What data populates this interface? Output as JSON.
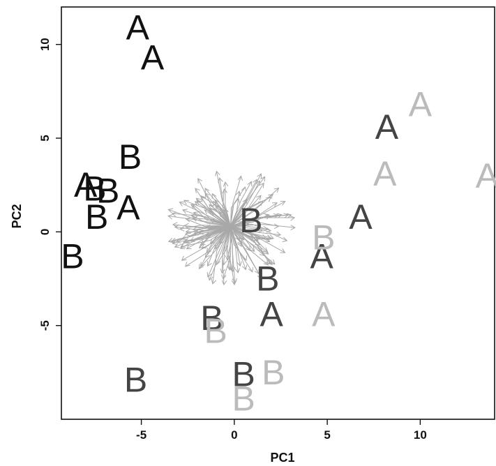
{
  "chart_data": {
    "type": "scatter",
    "title": "",
    "xlabel": "PC1",
    "ylabel": "PC2",
    "xlim": [
      -9.3,
      14
    ],
    "ylim": [
      -10,
      12
    ],
    "xticks": [
      -5,
      0,
      5,
      10
    ],
    "yticks": [
      -5,
      0,
      5,
      10
    ],
    "grid": false,
    "colors": {
      "black": "#111111",
      "dark": "#444444",
      "light": "#bbbbbb",
      "arrows": "#a8a8a8"
    },
    "points": [
      {
        "label": "A",
        "x": -5.2,
        "y": 10.9,
        "shade": "black"
      },
      {
        "label": "A",
        "x": -4.4,
        "y": 9.3,
        "shade": "black"
      },
      {
        "label": "B",
        "x": -5.6,
        "y": 4.0,
        "shade": "black"
      },
      {
        "label": "A",
        "x": -8.0,
        "y": 2.5,
        "shade": "black"
      },
      {
        "label": "B",
        "x": -7.5,
        "y": 2.3,
        "shade": "black"
      },
      {
        "label": "B",
        "x": -6.8,
        "y": 2.2,
        "shade": "black"
      },
      {
        "label": "A",
        "x": -5.7,
        "y": 1.3,
        "shade": "black"
      },
      {
        "label": "B",
        "x": -7.4,
        "y": 0.8,
        "shade": "black"
      },
      {
        "label": "B",
        "x": -8.7,
        "y": -1.3,
        "shade": "black"
      },
      {
        "label": "A",
        "x": 8.2,
        "y": 5.6,
        "shade": "dark"
      },
      {
        "label": "A",
        "x": 6.8,
        "y": 0.8,
        "shade": "dark"
      },
      {
        "label": "B",
        "x": 0.9,
        "y": 0.6,
        "shade": "dark"
      },
      {
        "label": "A",
        "x": 4.7,
        "y": -1.3,
        "shade": "dark"
      },
      {
        "label": "B",
        "x": 1.8,
        "y": -2.5,
        "shade": "dark"
      },
      {
        "label": "A",
        "x": 2.0,
        "y": -4.4,
        "shade": "dark"
      },
      {
        "label": "B",
        "x": -1.2,
        "y": -4.6,
        "shade": "dark"
      },
      {
        "label": "B",
        "x": -5.3,
        "y": -7.9,
        "shade": "dark"
      },
      {
        "label": "B",
        "x": 0.5,
        "y": -7.6,
        "shade": "dark"
      },
      {
        "label": "A",
        "x": 10.0,
        "y": 6.8,
        "shade": "light"
      },
      {
        "label": "A",
        "x": 8.1,
        "y": 3.1,
        "shade": "light"
      },
      {
        "label": "A",
        "x": 13.6,
        "y": 3.0,
        "shade": "light"
      },
      {
        "label": "B",
        "x": 4.8,
        "y": -0.3,
        "shade": "light"
      },
      {
        "label": "A",
        "x": 4.8,
        "y": -4.4,
        "shade": "light"
      },
      {
        "label": "B",
        "x": -1.0,
        "y": -5.3,
        "shade": "light"
      },
      {
        "label": "B",
        "x": 2.1,
        "y": -7.5,
        "shade": "light"
      },
      {
        "label": "B",
        "x": 0.5,
        "y": -8.9,
        "shade": "light"
      }
    ],
    "arrow_cloud": {
      "center": [
        -0.2,
        0.3
      ],
      "count": 150,
      "max_radius_x": 3.5,
      "max_radius_y": 3.2
    }
  }
}
